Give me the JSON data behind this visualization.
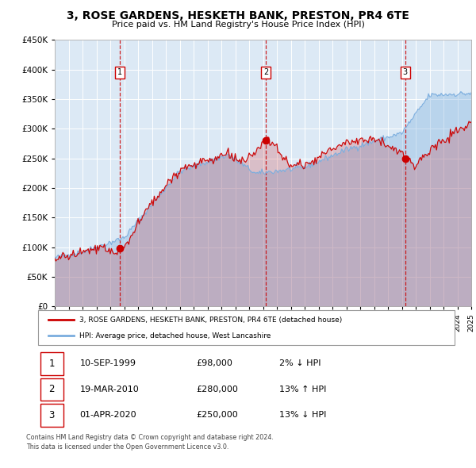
{
  "title": "3, ROSE GARDENS, HESKETH BANK, PRESTON, PR4 6TE",
  "subtitle": "Price paid vs. HM Land Registry's House Price Index (HPI)",
  "legend_red": "3, ROSE GARDENS, HESKETH BANK, PRESTON, PR4 6TE (detached house)",
  "legend_blue": "HPI: Average price, detached house, West Lancashire",
  "footer1": "Contains HM Land Registry data © Crown copyright and database right 2024.",
  "footer2": "This data is licensed under the Open Government Licence v3.0.",
  "transactions": [
    {
      "num": 1,
      "date": "10-SEP-1999",
      "price": 98000,
      "pct": "2%",
      "dir": "↓"
    },
    {
      "num": 2,
      "date": "19-MAR-2010",
      "price": 280000,
      "pct": "13%",
      "dir": "↑"
    },
    {
      "num": 3,
      "date": "01-APR-2020",
      "price": 250000,
      "pct": "13%",
      "dir": "↓"
    }
  ],
  "transaction_dates_decimal": [
    1999.69,
    2010.21,
    2020.25
  ],
  "transaction_prices": [
    98000,
    280000,
    250000
  ],
  "start_year": 1995,
  "end_year": 2025,
  "ylim": [
    0,
    450000
  ],
  "yticks": [
    0,
    50000,
    100000,
    150000,
    200000,
    250000,
    300000,
    350000,
    400000,
    450000
  ],
  "plot_bg": "#dce9f5",
  "red_color": "#cc0000",
  "blue_color": "#7aadde",
  "grid_color": "#ffffff",
  "vline_color": "#cc0000",
  "seed": 42
}
